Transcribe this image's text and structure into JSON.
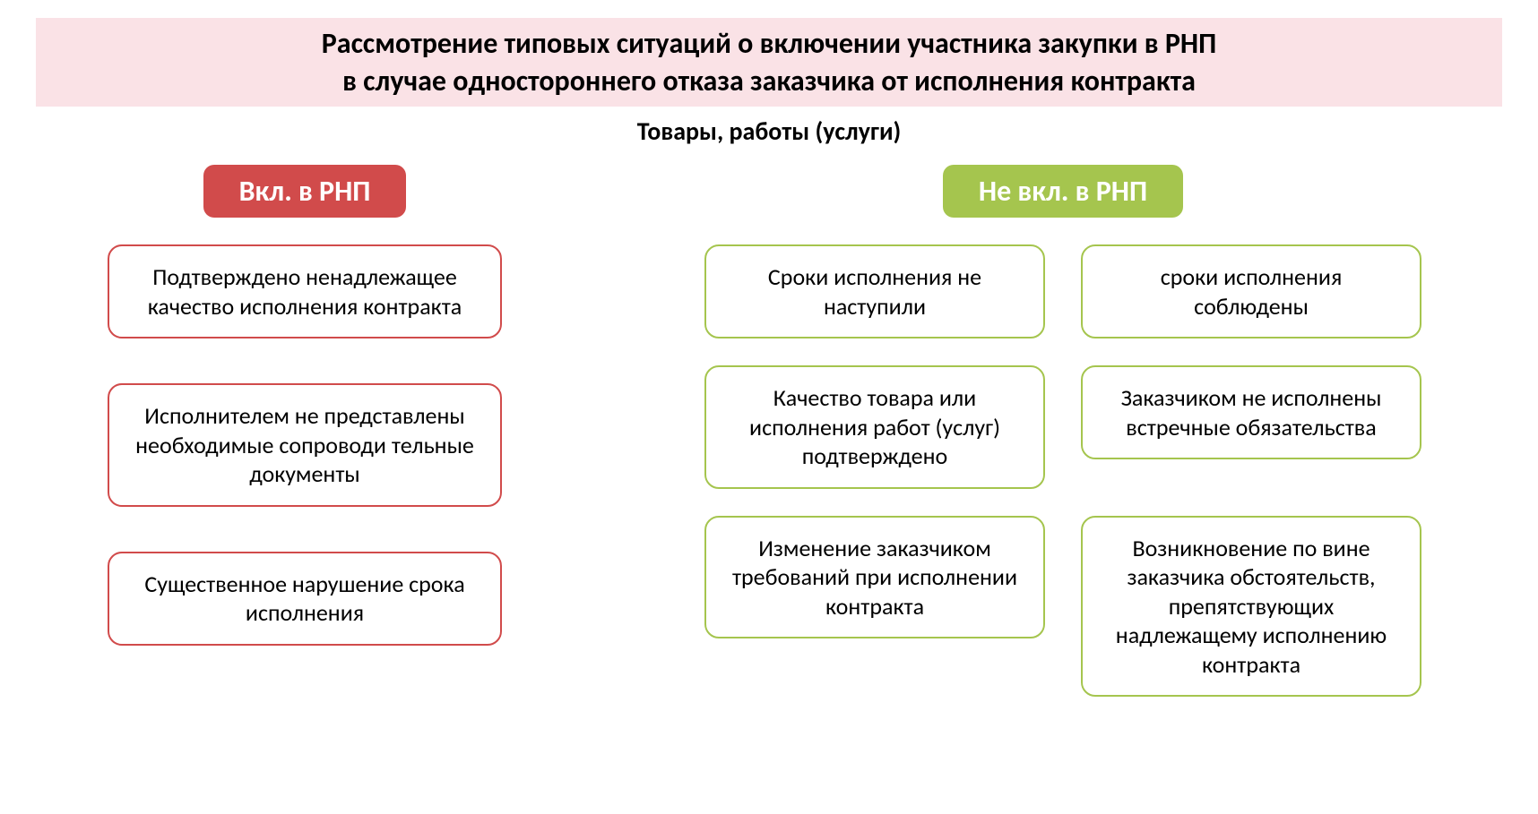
{
  "title": {
    "line1": "Рассмотрение типовых ситуаций о включении участника закупки в РНП",
    "line2": "в случае одностороннего отказа заказчика от исполнения контракта"
  },
  "subtitle": "Товары, работы (услуги)",
  "colors": {
    "title_bg": "#fae2e6",
    "red_header_bg": "#d14b4b",
    "green_header_bg": "#a5c54e",
    "red_border": "#d14b4b",
    "green_border": "#a5c54e",
    "text": "#000000",
    "header_text": "#ffffff",
    "page_bg": "#ffffff"
  },
  "typography": {
    "title_fontsize": 32,
    "title_fontweight": 700,
    "subtitle_fontsize": 28,
    "subtitle_fontweight": 700,
    "header_fontsize": 32,
    "header_fontweight": 700,
    "card_fontsize": 26,
    "card_fontweight": 400,
    "font_family": "Calibri"
  },
  "layout": {
    "card_border_radius": 16,
    "header_border_radius": 12,
    "card_border_width": 2,
    "left_col_width": 440,
    "right_col_width": 820,
    "green_card_width": 380,
    "red_card_width": 440
  },
  "left": {
    "header": "Вкл. в РНП",
    "cards": [
      "Подтверждено ненадлежащее качество  исполнения контракта",
      "Исполнителем не представлены необходимые сопроводи тельные документы",
      "Существенное нарушение срока исполнения"
    ]
  },
  "right": {
    "header": "Не вкл. в РНП",
    "cards": [
      "Сроки исполнения не наступили",
      "сроки исполнения соблюдены",
      "Качество товара или исполнения работ (услуг) подтверждено",
      "Заказчиком не исполнены встречные обязательства",
      "Изменение заказчиком требований при исполнении контракта",
      "Возникновение по вине заказчика обстоятельств, препятствующих надлежащему исполнению контракта"
    ]
  }
}
